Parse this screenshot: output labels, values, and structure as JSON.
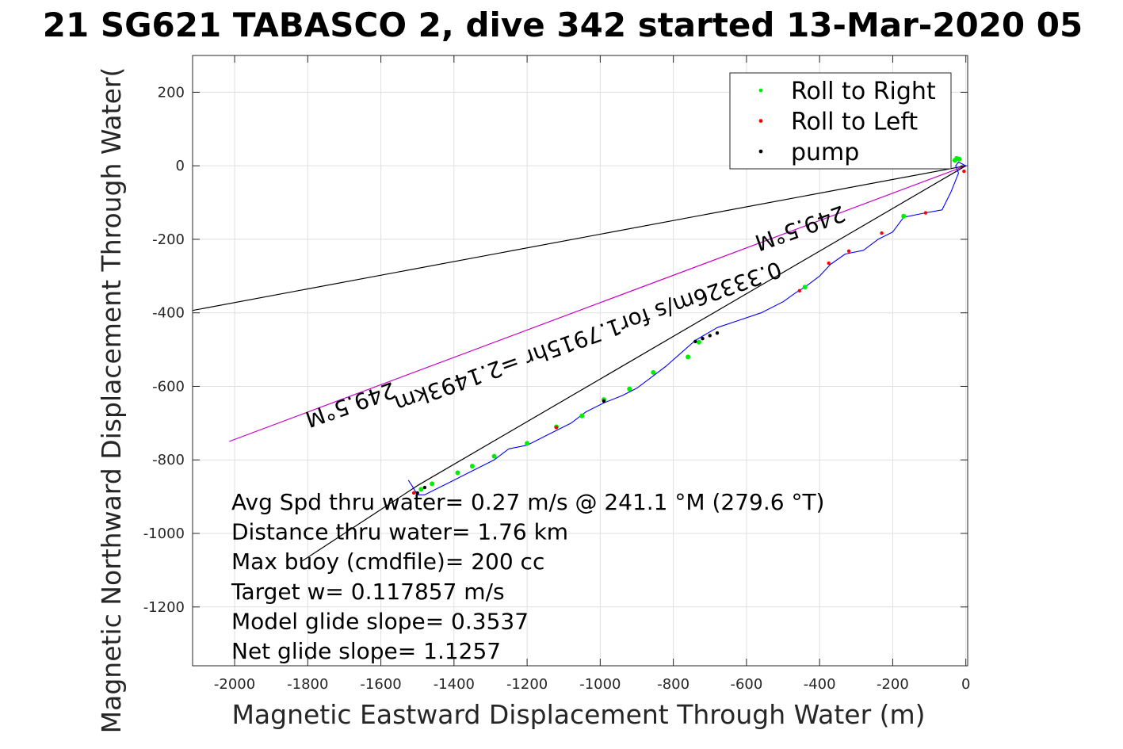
{
  "chart_data": {
    "type": "line",
    "title": "21 SG621 TABASCO 2, dive 342 started 13-Mar-2020 05",
    "xlabel": "Magnetic Eastward Displacement Through Water (m)",
    "ylabel": "Magnetic Northward Displacement Through Water(",
    "xlim": [
      -2115,
      5
    ],
    "ylim": [
      -1360,
      300
    ],
    "grid": true,
    "xticks": [
      -2000,
      -1800,
      -1600,
      -1400,
      -1200,
      -1000,
      -800,
      -600,
      -400,
      -200,
      0
    ],
    "yticks": [
      200,
      0,
      -200,
      -400,
      -600,
      -800,
      -1000,
      -1200
    ],
    "legend": {
      "position": "top-right",
      "entries": [
        {
          "label": "Roll to Right",
          "color": "#00ee00"
        },
        {
          "label": "Roll to Left",
          "color": "#ff0000"
        },
        {
          "label": "pump",
          "color": "#000000"
        }
      ]
    },
    "track": {
      "name": "track",
      "color": "#0000ff",
      "x": [
        0,
        -20,
        -28,
        -20,
        -40,
        -65,
        -110,
        -170,
        -200,
        -240,
        -280,
        -330,
        -370,
        -400,
        -440,
        -465,
        -500,
        -560,
        -620,
        -680,
        -740,
        -780,
        -820,
        -860,
        -900,
        -940,
        -990,
        -1040,
        -1080,
        -1120,
        -1160,
        -1200,
        -1250,
        -1290,
        -1330,
        -1370,
        -1410,
        -1450,
        -1480,
        -1500,
        -1515,
        -1525
      ],
      "y": [
        0,
        10,
        0,
        -20,
        -70,
        -120,
        -128,
        -140,
        -180,
        -200,
        -230,
        -240,
        -268,
        -300,
        -330,
        -345,
        -370,
        -400,
        -420,
        -440,
        -475,
        -510,
        -545,
        -575,
        -605,
        -625,
        -645,
        -670,
        -700,
        -720,
        -740,
        -760,
        -770,
        -800,
        -820,
        -840,
        -860,
        -880,
        -895,
        -895,
        -870,
        -855
      ]
    },
    "roll_right": {
      "name": "Roll to Right",
      "color": "#00ee00",
      "x": [
        -30,
        -25,
        -18,
        -170,
        -440,
        -730,
        -760,
        -855,
        -920,
        -990,
        -1050,
        -1120,
        -1200,
        -1290,
        -1350,
        -1390,
        -1460,
        -1490
      ],
      "y": [
        15,
        20,
        18,
        -137,
        -330,
        -480,
        -520,
        -562,
        -607,
        -636,
        -680,
        -710,
        -755,
        -790,
        -817,
        -835,
        -865,
        -880
      ]
    },
    "roll_left": {
      "name": "Roll to Left",
      "color": "#ff0000",
      "x": [
        -5,
        -110,
        -230,
        -320,
        -375,
        -455,
        -990,
        -1120,
        -1510
      ],
      "y": [
        -15,
        -128,
        -183,
        -232,
        -265,
        -340,
        -640,
        -712,
        -890
      ]
    },
    "pump": {
      "name": "pump",
      "color": "#000000",
      "x": [
        -740,
        -720,
        -700,
        -680,
        -990,
        -1480,
        -1500
      ],
      "y": [
        -478,
        -470,
        -462,
        -455,
        -640,
        -875,
        -890
      ]
    },
    "reference_lines": [
      {
        "color": "#000000",
        "x": [
          0,
          -2150
        ],
        "y": [
          0,
          -400
        ]
      },
      {
        "color": "#cc00cc",
        "x": [
          0,
          -2015
        ],
        "y": [
          0,
          -750
        ]
      },
      {
        "color": "#000000",
        "x": [
          0,
          -1500
        ],
        "y": [
          0,
          -870
        ]
      },
      {
        "color": "#000000",
        "x": [
          -1500,
          -1815
        ],
        "y": [
          -870,
          -1075
        ]
      }
    ],
    "bearing_labels": [
      {
        "text": "249.5°M",
        "x": -1690,
        "y": -630
      },
      {
        "text": "0.33326m/s for1.7915hr =2.1493km",
        "x": -1040,
        "y": -445
      },
      {
        "text": "249.5°M",
        "x": -460,
        "y": -150
      }
    ],
    "annotations": [
      "Avg Spd thru water=  0.27 m/s @ 241.1 °M (279.6 °T)",
      "Distance thru water=  1.76 km",
      "Max buoy (cmdfile)= 200 cc",
      "Target w= 0.117857 m/s",
      "Model glide slope= 0.3537",
      "Net glide slope= 1.1257"
    ]
  }
}
